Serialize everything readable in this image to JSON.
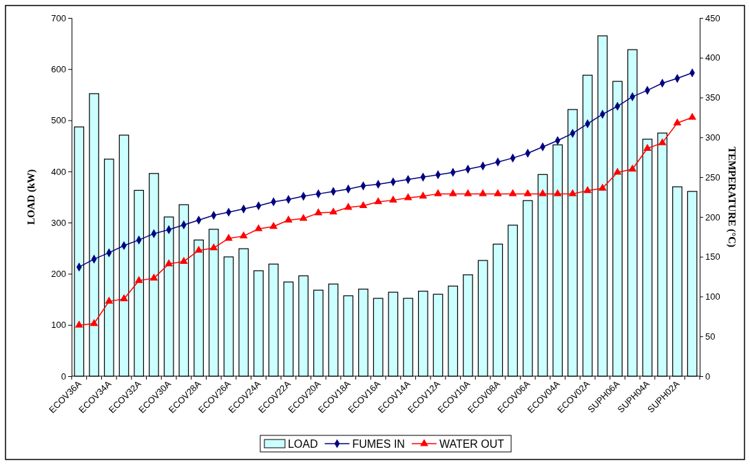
{
  "chart_data": {
    "type": "bar",
    "ylabel": "LOAD (kW)",
    "y2label": "TEMPERATURE (°C)",
    "categories": [
      "ECOV36A",
      null,
      "ECOV34A",
      null,
      "ECOV32A",
      null,
      "ECOV30A",
      null,
      "ECOV28A",
      null,
      "ECOV26A",
      null,
      "ECOV24A",
      null,
      "ECOV22A",
      null,
      "ECOV20A",
      null,
      "ECOV18A",
      null,
      "ECOV16A",
      null,
      "ECOV14A",
      null,
      "ECOV12A",
      null,
      "ECOV10A",
      null,
      "ECOV08A",
      null,
      "ECOV06A",
      null,
      "ECOV04A",
      null,
      "ECOV02A",
      null,
      "SUPH06A",
      null,
      "SUPH04A",
      null,
      "SUPH02A",
      null
    ],
    "series": [
      {
        "name": "LOAD",
        "color": "#ccffff",
        "values": [
          487,
          552,
          424,
          471,
          363,
          396,
          311,
          335,
          266,
          287,
          233,
          249,
          206,
          219,
          184,
          196,
          168,
          180,
          157,
          170,
          152,
          164,
          152,
          166,
          160,
          176,
          198,
          226,
          258,
          295,
          343,
          394,
          452,
          521,
          588,
          665,
          576,
          638,
          463,
          475,
          370,
          361
        ]
      },
      {
        "name": "FUMES IN",
        "type": "line",
        "axis": "y2",
        "color": "#000080",
        "marker": "diamond",
        "values": [
          137,
          147,
          155,
          164,
          171,
          179,
          184,
          190,
          196,
          202,
          206,
          210,
          214,
          219,
          222,
          226,
          229,
          232,
          235,
          239,
          241,
          244,
          247,
          250,
          253,
          256,
          260,
          264,
          269,
          274,
          280,
          288,
          296,
          305,
          317,
          329,
          339,
          351,
          359,
          368,
          374,
          381
        ]
      },
      {
        "name": "WATER OUT",
        "type": "line",
        "axis": "y2",
        "color": "#ff0000",
        "marker": "triangle",
        "values": [
          64,
          66,
          94,
          97,
          120,
          123,
          141,
          144,
          158,
          161,
          173,
          176,
          185,
          188,
          196,
          198,
          205,
          206,
          212,
          214,
          219,
          221,
          224,
          226,
          229,
          229,
          229,
          229,
          229,
          229,
          229,
          229,
          229,
          229,
          233,
          236,
          256,
          260,
          286,
          293,
          318,
          325
        ]
      }
    ],
    "ylim": [
      0,
      700
    ],
    "yticks": [
      0,
      100,
      200,
      300,
      400,
      500,
      600,
      700
    ],
    "y2lim": [
      0,
      450
    ],
    "y2ticks": [
      0,
      50,
      100,
      150,
      200,
      250,
      300,
      350,
      400,
      450
    ],
    "grid": false,
    "legend": "bottom"
  }
}
